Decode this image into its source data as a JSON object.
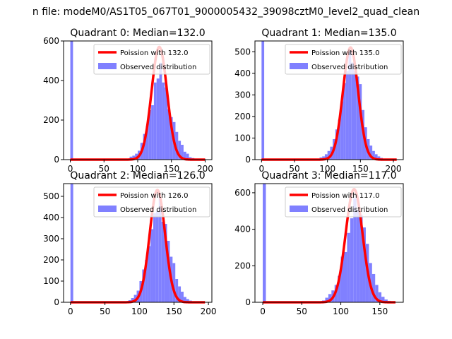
{
  "figure": {
    "suptitle": "n file: modeM0/AS1T05_067T01_9000005432_39098cztM0_level2_quad_clean"
  },
  "colors": {
    "poisson": "#ff0000",
    "observed": "#8080ff",
    "axes": "#000000",
    "background": "#ffffff"
  },
  "chart_data": [
    {
      "type": "bar",
      "title": "Quadrant 0: Median=132.0",
      "xlim": [
        -10,
        210
      ],
      "ylim": [
        0,
        600
      ],
      "xticks": [
        0,
        50,
        100,
        150,
        200
      ],
      "yticks": [
        0,
        200,
        400,
        600
      ],
      "legend": {
        "placement": "upper-right",
        "entries": [
          "Poission with 132.0",
          "Observed distribution"
        ]
      },
      "poisson_mean": 132.0,
      "bin_width": 4,
      "series": [
        {
          "name": "Observed distribution",
          "type": "histogram",
          "bins": [
            0,
            80,
            84,
            88,
            92,
            96,
            100,
            104,
            108,
            112,
            116,
            120,
            124,
            128,
            132,
            136,
            140,
            144,
            148,
            152,
            156,
            160,
            164,
            168,
            172,
            176,
            180,
            184,
            188
          ],
          "counts": [
            600,
            3,
            5,
            15,
            20,
            30,
            45,
            85,
            130,
            170,
            250,
            275,
            390,
            410,
            490,
            390,
            365,
            255,
            215,
            190,
            140,
            95,
            75,
            40,
            30,
            12,
            8,
            4,
            2
          ]
        },
        {
          "name": "Poission with 132.0",
          "type": "line",
          "peak": 570
        }
      ]
    },
    {
      "type": "bar",
      "title": "Quadrant 1: Median=135.0",
      "xlim": [
        -10,
        215
      ],
      "ylim": [
        0,
        550
      ],
      "xticks": [
        0,
        50,
        100,
        150,
        200
      ],
      "yticks": [
        0,
        100,
        200,
        300,
        400,
        500
      ],
      "legend": {
        "placement": "upper-right",
        "entries": [
          "Poission with 135.0",
          "Observed distribution"
        ]
      },
      "poisson_mean": 135.0,
      "bin_width": 4,
      "series": [
        {
          "name": "Observed distribution",
          "type": "histogram",
          "bins": [
            0,
            80,
            84,
            88,
            92,
            96,
            100,
            104,
            108,
            112,
            116,
            120,
            124,
            128,
            132,
            136,
            140,
            144,
            148,
            152,
            156,
            160,
            164,
            168,
            172,
            176,
            180,
            184,
            188
          ],
          "counts": [
            550,
            2,
            4,
            10,
            15,
            25,
            40,
            60,
            95,
            140,
            185,
            270,
            355,
            410,
            505,
            450,
            410,
            385,
            350,
            230,
            150,
            95,
            65,
            40,
            25,
            15,
            8,
            4,
            2
          ]
        },
        {
          "name": "Poission with 135.0",
          "type": "line",
          "peak": 520
        }
      ]
    },
    {
      "type": "bar",
      "title": "Quadrant 2: Median=126.0",
      "xlim": [
        -10,
        205
      ],
      "ylim": [
        0,
        560
      ],
      "xticks": [
        0,
        50,
        100,
        150,
        200
      ],
      "yticks": [
        0,
        100,
        200,
        300,
        400,
        500
      ],
      "legend": {
        "placement": "upper-right",
        "entries": [
          "Poission with 126.0",
          "Observed distribution"
        ]
      },
      "poisson_mean": 126.0,
      "bin_width": 4,
      "series": [
        {
          "name": "Observed distribution",
          "type": "histogram",
          "bins": [
            0,
            76,
            80,
            84,
            88,
            92,
            96,
            100,
            104,
            108,
            112,
            116,
            120,
            124,
            128,
            132,
            136,
            140,
            144,
            148,
            152,
            156,
            160,
            164,
            168,
            172,
            176,
            180
          ],
          "counts": [
            560,
            2,
            5,
            10,
            20,
            35,
            55,
            100,
            155,
            200,
            265,
            345,
            420,
            430,
            495,
            380,
            370,
            290,
            215,
            185,
            110,
            75,
            50,
            25,
            15,
            8,
            4,
            2
          ]
        },
        {
          "name": "Poission with 126.0",
          "type": "line",
          "peak": 530
        }
      ]
    },
    {
      "type": "bar",
      "title": "Quadrant 3: Median=117.0",
      "xlim": [
        -10,
        180
      ],
      "ylim": [
        0,
        650
      ],
      "xticks": [
        0,
        50,
        100,
        150
      ],
      "yticks": [
        0,
        200,
        400,
        600
      ],
      "legend": {
        "placement": "upper-right",
        "entries": [
          "Poission with 117.0",
          "Observed distribution"
        ]
      },
      "poisson_mean": 117.0,
      "bin_width": 4,
      "series": [
        {
          "name": "Observed distribution",
          "type": "histogram",
          "bins": [
            0,
            72,
            76,
            80,
            84,
            88,
            92,
            96,
            100,
            104,
            108,
            112,
            116,
            120,
            124,
            128,
            132,
            136,
            140,
            144,
            148,
            152,
            156,
            160,
            164
          ],
          "counts": [
            650,
            3,
            10,
            25,
            45,
            65,
            95,
            145,
            250,
            275,
            380,
            460,
            570,
            505,
            480,
            410,
            320,
            215,
            155,
            95,
            55,
            30,
            15,
            8,
            3
          ]
        },
        {
          "name": "Poission with 117.0",
          "type": "line",
          "peak": 620
        }
      ]
    }
  ]
}
